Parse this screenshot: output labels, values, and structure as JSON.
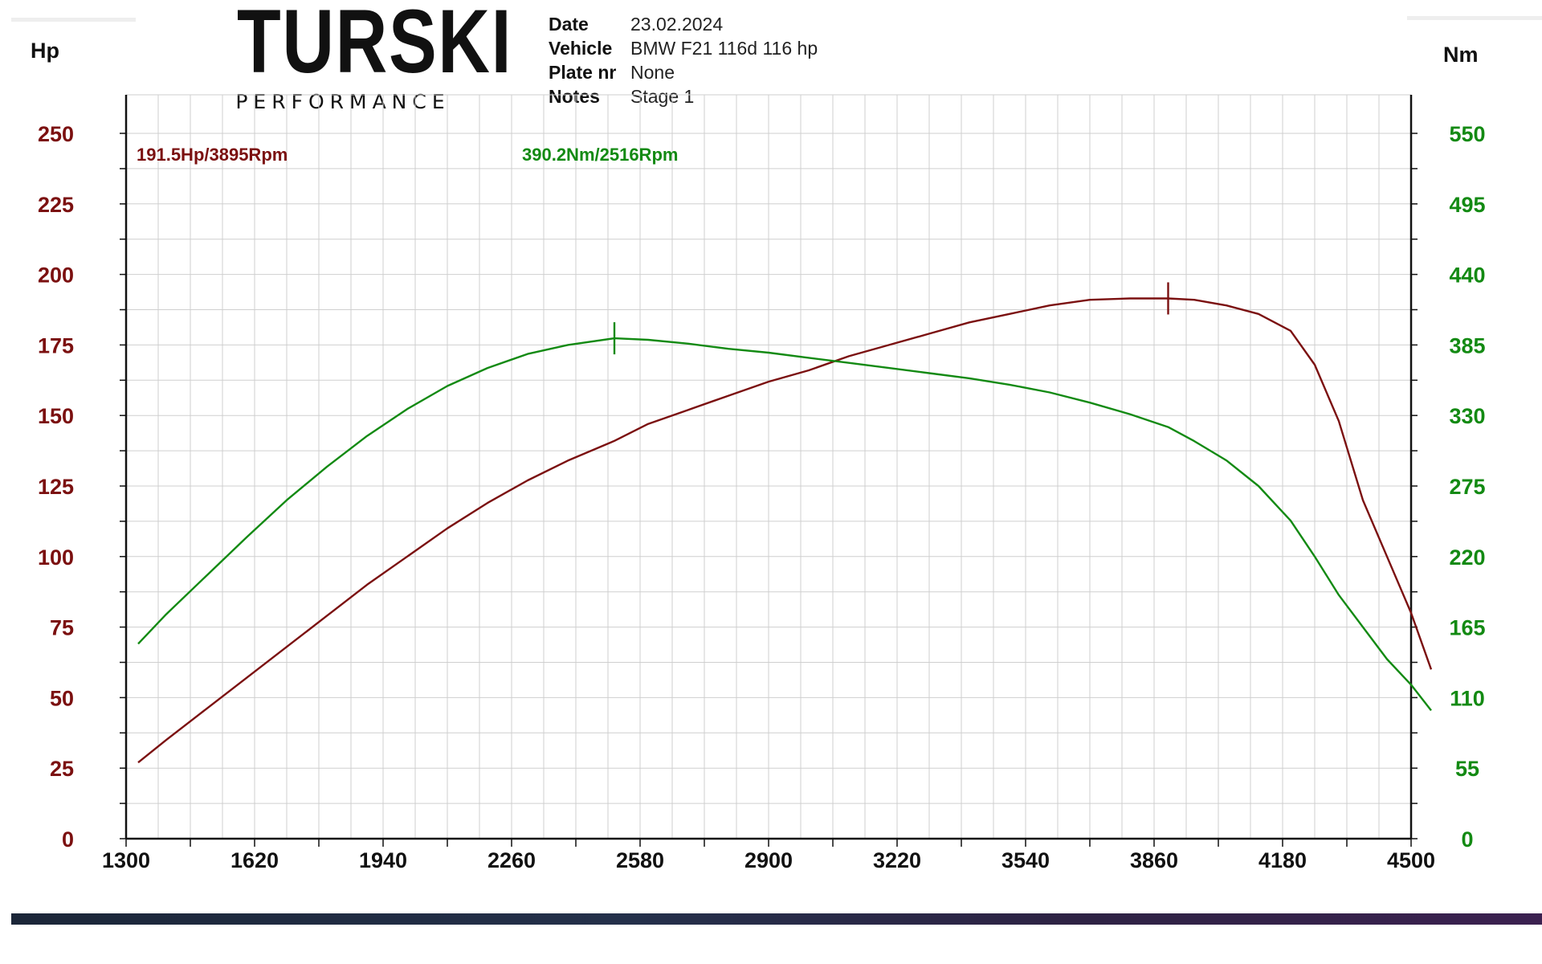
{
  "brand": {
    "name": "TURSKI",
    "subtitle": "PERFORMANCE"
  },
  "info": [
    {
      "key": "Date",
      "value": "23.02.2024"
    },
    {
      "key": "Vehicle",
      "value": "BMW F21 116d 116 hp"
    },
    {
      "key": "Plate nr",
      "value": "None"
    },
    {
      "key": "Notes",
      "value": "Stage 1"
    }
  ],
  "colors": {
    "power": "#7b1010",
    "torque": "#138a13",
    "grid": "#cfcfcf",
    "axis": "#111111"
  },
  "chart_data": {
    "type": "line",
    "x": [
      1330,
      1400,
      1500,
      1600,
      1700,
      1800,
      1900,
      2000,
      2100,
      2200,
      2300,
      2400,
      2516,
      2600,
      2700,
      2800,
      2900,
      3000,
      3100,
      3200,
      3300,
      3400,
      3500,
      3600,
      3700,
      3800,
      3895,
      3960,
      4040,
      4120,
      4200,
      4260,
      4320,
      4380,
      4440,
      4500,
      4550
    ],
    "xlim": [
      1300,
      4500
    ],
    "x_ticks": [
      "1300",
      "1620",
      "1940",
      "2260",
      "2580",
      "2900",
      "3220",
      "3540",
      "3860",
      "4180",
      "4500"
    ],
    "y_left_label": "Hp",
    "y_left_ticks": [
      "250",
      "225",
      "200",
      "175",
      "150",
      "125",
      "100",
      "75",
      "50",
      "25",
      "0"
    ],
    "y_left_lim": [
      0,
      250
    ],
    "y_right_label": "Nm",
    "y_right_ticks": [
      "550",
      "495",
      "440",
      "385",
      "330",
      "275",
      "220",
      "165",
      "110",
      "55",
      "0"
    ],
    "y_right_lim": [
      0,
      550
    ],
    "grid": true,
    "series": [
      {
        "name": "Hp",
        "axis": "left",
        "values": [
          27,
          35,
          46,
          57,
          68,
          79,
          90,
          100,
          110,
          119,
          127,
          134,
          141,
          147,
          152,
          157,
          162,
          166,
          171,
          175,
          179,
          183,
          186,
          189,
          191,
          191.5,
          191.5,
          191,
          189,
          186,
          180,
          168,
          148,
          120,
          100,
          80,
          60
        ],
        "peak_label": "191.5Hp/3895Rpm",
        "peak_x": 3895
      },
      {
        "name": "Nm",
        "axis": "right",
        "values": [
          152,
          175,
          205,
          235,
          264,
          290,
          314,
          335,
          353,
          367,
          378,
          385,
          390.2,
          389,
          386,
          382,
          379,
          375,
          371,
          367,
          363,
          359,
          354,
          348,
          340,
          331,
          321,
          310,
          295,
          275,
          248,
          220,
          190,
          165,
          140,
          120,
          100
        ],
        "peak_label": "390.2Nm/2516Rpm",
        "peak_x": 2516
      }
    ]
  }
}
